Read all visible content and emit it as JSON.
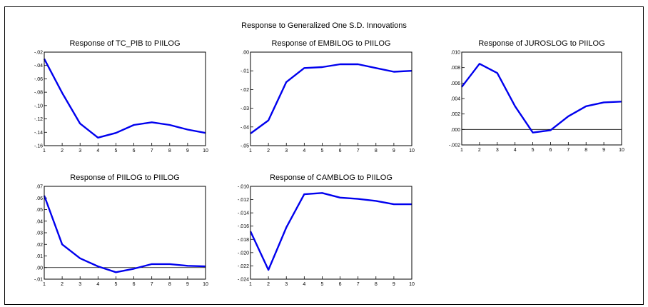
{
  "figure": {
    "title": "Response to Generalized One S.D. Innovations",
    "line_color": "#0000ee",
    "zero_line_color": "#000000"
  },
  "chart_data": [
    {
      "type": "line",
      "title": "Response of TC_PIB to PIILOG",
      "x": [
        1,
        2,
        3,
        4,
        5,
        6,
        7,
        8,
        9,
        10
      ],
      "series": [
        {
          "values": [
            -0.03,
            -0.081,
            -0.127,
            -0.148,
            -0.141,
            -0.129,
            -0.125,
            -0.129,
            -0.136,
            -0.141
          ]
        }
      ],
      "ylim": [
        -0.16,
        -0.02
      ],
      "yticks": [
        -0.02,
        -0.04,
        -0.06,
        -0.08,
        -0.1,
        -0.12,
        -0.14,
        -0.16
      ],
      "ytick_labels": [
        "-.02",
        "-.04",
        "-.06",
        "-.08",
        "-.10",
        "-.12",
        "-.14",
        "-.16"
      ],
      "zero_line": false
    },
    {
      "type": "line",
      "title": "Response of EMBILOG to PIILOG",
      "x": [
        1,
        2,
        3,
        4,
        5,
        6,
        7,
        8,
        9,
        10
      ],
      "series": [
        {
          "values": [
            -0.0435,
            -0.0365,
            -0.016,
            -0.0085,
            -0.008,
            -0.0065,
            -0.0065,
            -0.0085,
            -0.0105,
            -0.01
          ]
        }
      ],
      "ylim": [
        -0.05,
        0.0
      ],
      "yticks": [
        0.0,
        -0.01,
        -0.02,
        -0.03,
        -0.04,
        -0.05
      ],
      "ytick_labels": [
        ".00",
        "-.01",
        "-.02",
        "-.03",
        "-.04",
        "-.05"
      ],
      "zero_line": false
    },
    {
      "type": "line",
      "title": "Response of JUROSLOG to PIILOG",
      "x": [
        1,
        2,
        3,
        4,
        5,
        6,
        7,
        8,
        9,
        10
      ],
      "series": [
        {
          "values": [
            0.0055,
            0.0085,
            0.0073,
            0.003,
            -0.0004,
            -0.0001,
            0.0017,
            0.003,
            0.0035,
            0.0036
          ]
        }
      ],
      "ylim": [
        -0.002,
        0.01
      ],
      "yticks": [
        0.01,
        0.008,
        0.006,
        0.004,
        0.002,
        0.0,
        -0.002
      ],
      "ytick_labels": [
        ".010",
        ".008",
        ".006",
        ".004",
        ".002",
        ".000",
        "-.002"
      ],
      "zero_line": true
    },
    {
      "type": "line",
      "title": "Response of PIILOG to PIILOG",
      "x": [
        1,
        2,
        3,
        4,
        5,
        6,
        7,
        8,
        9,
        10
      ],
      "series": [
        {
          "values": [
            0.062,
            0.02,
            0.008,
            0.001,
            -0.004,
            -0.001,
            0.003,
            0.003,
            0.0015,
            0.001
          ]
        }
      ],
      "ylim": [
        -0.01,
        0.07
      ],
      "yticks": [
        0.07,
        0.06,
        0.05,
        0.04,
        0.03,
        0.02,
        0.01,
        0.0,
        -0.01
      ],
      "ytick_labels": [
        ".07",
        ".06",
        ".05",
        ".04",
        ".03",
        ".02",
        ".01",
        ".00",
        "-.01"
      ],
      "zero_line": true
    },
    {
      "type": "line",
      "title": "Response of CAMBLOG to PIILOG",
      "x": [
        1,
        2,
        3,
        4,
        5,
        6,
        7,
        8,
        9,
        10
      ],
      "series": [
        {
          "values": [
            -0.0168,
            -0.0226,
            -0.0162,
            -0.0112,
            -0.011,
            -0.0117,
            -0.0119,
            -0.0122,
            -0.0127,
            -0.0127
          ]
        }
      ],
      "ylim": [
        -0.024,
        -0.01
      ],
      "yticks": [
        -0.01,
        -0.012,
        -0.014,
        -0.016,
        -0.018,
        -0.02,
        -0.022,
        -0.024
      ],
      "ytick_labels": [
        "-.010",
        "-.012",
        "-.014",
        "-.016",
        "-.018",
        "-.020",
        "-.022",
        "-.024"
      ],
      "zero_line": false
    }
  ]
}
